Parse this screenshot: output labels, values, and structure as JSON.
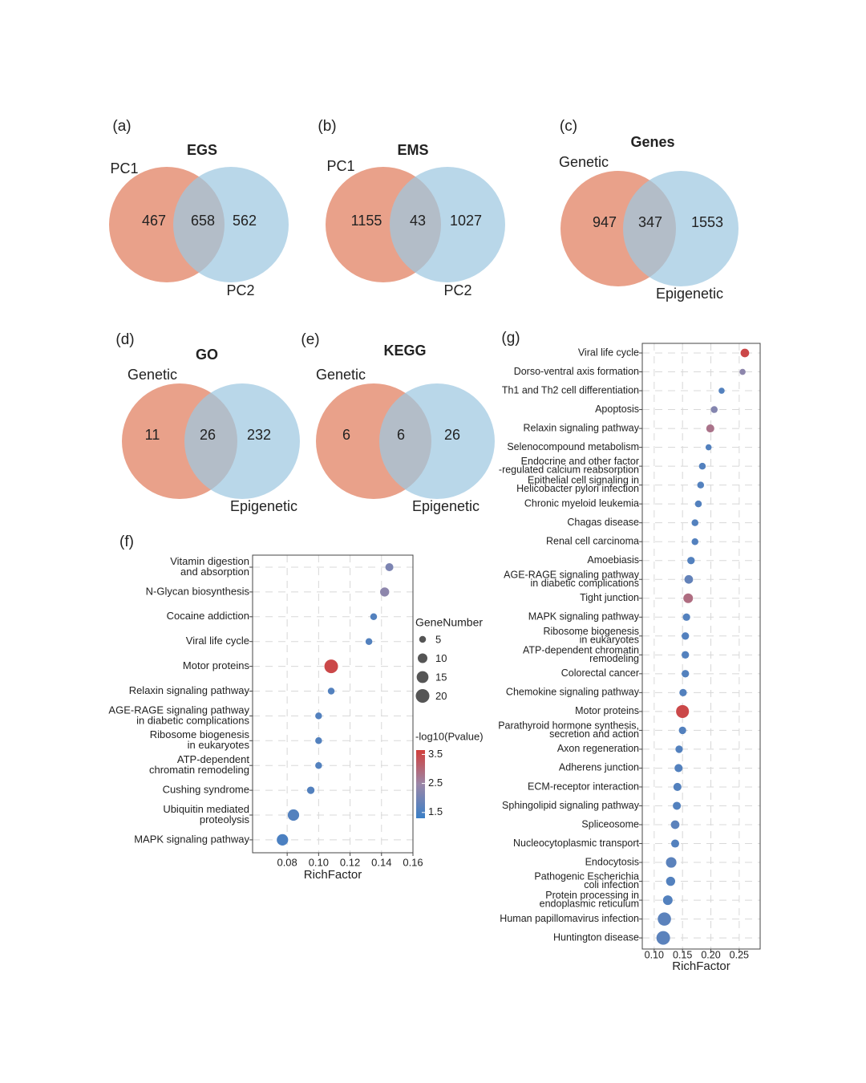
{
  "chart_data": [
    {
      "type": "venn",
      "panel": "(a)",
      "title": "EGS",
      "sets": [
        "PC1",
        "PC2"
      ],
      "values": [
        467,
        658,
        562
      ],
      "colors": [
        "#e9a18a",
        "#9ec8e1"
      ]
    },
    {
      "type": "venn",
      "panel": "(b)",
      "title": "EMS",
      "sets": [
        "PC1",
        "PC2"
      ],
      "values": [
        1155,
        43,
        1027
      ],
      "colors": [
        "#e9a18a",
        "#9ec8e1"
      ]
    },
    {
      "type": "venn",
      "panel": "(c)",
      "title": "Genes",
      "sets": [
        "Genetic",
        "Epigenetic"
      ],
      "values": [
        947,
        347,
        1553
      ],
      "colors": [
        "#e9a18a",
        "#9ec8e1"
      ]
    },
    {
      "type": "venn",
      "panel": "(d)",
      "title": "GO",
      "sets": [
        "Genetic",
        "Epigenetic"
      ],
      "values": [
        11,
        26,
        232
      ],
      "colors": [
        "#e9a18a",
        "#9ec8e1"
      ]
    },
    {
      "type": "venn",
      "panel": "(e)",
      "title": "KEGG",
      "sets": [
        "Genetic",
        "Epigenetic"
      ],
      "values": [
        6,
        6,
        26
      ],
      "colors": [
        "#e9a18a",
        "#9ec8e1"
      ]
    },
    {
      "type": "dot",
      "panel": "(f)",
      "x_label": "RichFactor",
      "categories": [
        [
          "Vitamin digestion",
          "and absorption"
        ],
        [
          "N-Glycan biosynthesis"
        ],
        [
          "Cocaine addiction"
        ],
        [
          "Viral life cycle"
        ],
        [
          "Motor proteins"
        ],
        [
          "Relaxin signaling pathway"
        ],
        [
          "AGE-RAGE signaling pathway",
          "in diabetic complications"
        ],
        [
          "Ribosome biogenesis",
          "in eukaryotes"
        ],
        [
          "ATP-dependent",
          "chromatin remodeling"
        ],
        [
          "Cushing syndrome"
        ],
        [
          "Ubiquitin mediated",
          "proteolysis"
        ],
        [
          "MAPK signaling pathway"
        ]
      ],
      "values": [
        0.145,
        0.142,
        0.135,
        0.132,
        0.108,
        0.108,
        0.1,
        0.1,
        0.1,
        0.095,
        0.084,
        0.077
      ],
      "size_values": [
        7,
        9,
        5,
        5,
        20,
        5,
        5,
        5,
        5,
        6,
        14,
        14
      ],
      "color_values": [
        2.1,
        2.3,
        1.6,
        1.6,
        3.5,
        1.6,
        1.6,
        1.6,
        1.6,
        1.6,
        1.6,
        1.5
      ],
      "xlim": [
        0.058,
        0.16
      ],
      "xticks": [
        {
          "value": 0.08,
          "label": "0.08"
        },
        {
          "value": 0.1,
          "label": "0.10"
        },
        {
          "value": 0.12,
          "label": "0.12"
        },
        {
          "value": 0.14,
          "label": "0.14"
        },
        {
          "value": 0.16,
          "label": "0.16"
        }
      ],
      "grid": true,
      "color_lim": [
        1.3,
        3.65
      ],
      "colors": [
        "#3a7fc6",
        "#9b87a8",
        "#d23f3b"
      ],
      "size_legend": {
        "title": "GeneNumber",
        "ticks": [
          5,
          10,
          15,
          20
        ]
      },
      "color_legend": {
        "title": "-log10(Pvalue)",
        "ticks": [
          3.5,
          2.5,
          1.5
        ]
      }
    },
    {
      "type": "dot",
      "panel": "(g)",
      "x_label": "RichFactor",
      "categories": [
        [
          "Viral life cycle"
        ],
        [
          "Dorso-ventral axis formation"
        ],
        [
          "Th1 and Th2 cell differentiation"
        ],
        [
          "Apoptosis"
        ],
        [
          "Relaxin signaling pathway"
        ],
        [
          "Selenocompound metabolism"
        ],
        [
          "Endocrine and other factor",
          "-regulated calcium reabsorption"
        ],
        [
          "Epithelial cell signaling in",
          "Helicobacter pylori infection"
        ],
        [
          "Chronic myeloid leukemia"
        ],
        [
          "Chagas disease"
        ],
        [
          "Renal cell carcinoma"
        ],
        [
          "Amoebiasis"
        ],
        [
          "AGE-RAGE signaling pathway",
          "in diabetic complications"
        ],
        [
          "Tight junction"
        ],
        [
          "MAPK signaling pathway"
        ],
        [
          "Ribosome biogenesis",
          "in eukaryotes"
        ],
        [
          "ATP-dependent chromatin",
          "remodeling"
        ],
        [
          "Colorectal cancer"
        ],
        [
          "Chemokine signaling pathway"
        ],
        [
          "Motor proteins"
        ],
        [
          "Parathyroid hormone synthesis,",
          "secretion and action"
        ],
        [
          "Axon regeneration"
        ],
        [
          "Adherens junction"
        ],
        [
          "ECM-receptor interaction"
        ],
        [
          "Sphingolipid signaling pathway"
        ],
        [
          "Spliceosome"
        ],
        [
          "Nucleocytoplasmic transport"
        ],
        [
          "Endocytosis"
        ],
        [
          "Pathogenic Escherichia",
          "coli infection"
        ],
        [
          "Protein processing in",
          "endoplasmic reticulum"
        ],
        [
          "Human papillomavirus infection"
        ],
        [
          "Huntington disease"
        ]
      ],
      "values": [
        0.26,
        0.256,
        0.219,
        0.206,
        0.199,
        0.196,
        0.185,
        0.182,
        0.178,
        0.172,
        0.172,
        0.165,
        0.161,
        0.16,
        0.157,
        0.155,
        0.155,
        0.155,
        0.151,
        0.15,
        0.15,
        0.144,
        0.143,
        0.141,
        0.14,
        0.137,
        0.137,
        0.13,
        0.129,
        0.124,
        0.118,
        0.116
      ],
      "size_values": [
        8,
        4,
        4,
        5,
        7,
        4,
        5,
        5,
        5,
        5,
        5,
        6,
        8,
        10,
        6,
        6,
        6,
        6,
        6,
        18,
        6,
        6,
        7,
        7,
        7,
        8,
        7,
        12,
        9,
        10,
        19,
        20
      ],
      "color_values": [
        3.5,
        2.3,
        1.6,
        2.2,
        2.8,
        1.6,
        1.6,
        1.6,
        1.6,
        1.6,
        1.6,
        1.6,
        1.8,
        2.9,
        1.6,
        1.6,
        1.6,
        1.6,
        1.6,
        3.5,
        1.6,
        1.6,
        1.6,
        1.6,
        1.6,
        1.7,
        1.6,
        1.7,
        1.6,
        1.6,
        1.7,
        1.7
      ],
      "xlim": [
        0.079,
        0.287
      ],
      "xticks": [
        {
          "value": 0.1,
          "label": "0.10"
        },
        0.15,
        {
          "value": 0.2,
          "label": "0.20"
        },
        0.25
      ],
      "grid": true,
      "color_lim": [
        1.3,
        3.65
      ],
      "colors": [
        "#3a7fc6",
        "#9b87a8",
        "#d23f3b"
      ]
    }
  ]
}
